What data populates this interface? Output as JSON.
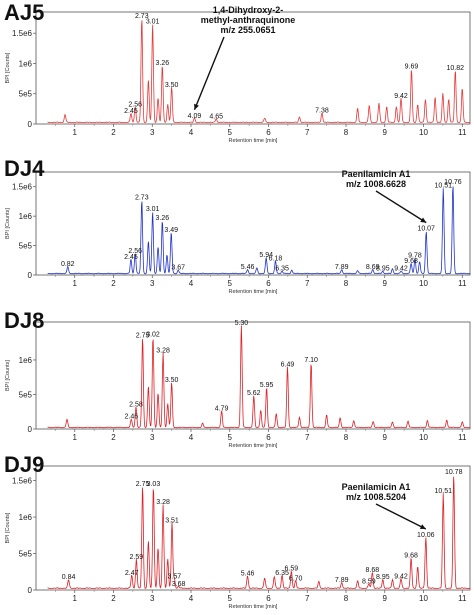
{
  "chart_data": [
    {
      "type": "line",
      "panel_label": "AJ5",
      "color": "#e8383a",
      "xlabel": "Retention time [min]",
      "ylabel": "BPI [Counts]",
      "xlim": [
        0,
        11.2
      ],
      "ylim": [
        0,
        1850000.0
      ],
      "x_ticks": [
        "1",
        "2",
        "3",
        "4",
        "5",
        "6",
        "7",
        "8",
        "9",
        "10",
        "11"
      ],
      "y_ticks": [
        {
          "label": "0",
          "value": 0
        },
        {
          "label": "5e5",
          "value": 500000
        },
        {
          "label": "1e6",
          "value": 1000000
        },
        {
          "label": "1.5e6",
          "value": 1500000
        }
      ],
      "peaks": [
        {
          "x": 2.45,
          "y": 150000,
          "label": "2.45"
        },
        {
          "x": 2.56,
          "y": 260000,
          "label": "2.56"
        },
        {
          "x": 2.73,
          "y": 1720000,
          "label": "2.73"
        },
        {
          "x": 3.01,
          "y": 1630000,
          "label": "3.01"
        },
        {
          "x": 3.26,
          "y": 940000,
          "label": "3.26"
        },
        {
          "x": 3.5,
          "y": 580000,
          "label": "3.50"
        },
        {
          "x": 4.09,
          "y": 70000,
          "label": "4.09"
        },
        {
          "x": 4.65,
          "y": 60000,
          "label": "4.65"
        },
        {
          "x": 7.38,
          "y": 160000,
          "label": "7.38"
        },
        {
          "x": 9.42,
          "y": 400000,
          "label": "9.42"
        },
        {
          "x": 9.69,
          "y": 880000,
          "label": "9.69"
        },
        {
          "x": 10.82,
          "y": 860000,
          "label": "10.82"
        },
        {
          "x": 0.75,
          "y": 130000,
          "label": ""
        },
        {
          "x": 2.9,
          "y": 700000,
          "label": ""
        },
        {
          "x": 3.15,
          "y": 400000,
          "label": ""
        },
        {
          "x": 3.4,
          "y": 300000,
          "label": ""
        },
        {
          "x": 5.9,
          "y": 70000,
          "label": ""
        },
        {
          "x": 6.8,
          "y": 90000,
          "label": ""
        },
        {
          "x": 8.3,
          "y": 230000,
          "label": ""
        },
        {
          "x": 8.6,
          "y": 280000,
          "label": ""
        },
        {
          "x": 8.85,
          "y": 320000,
          "label": ""
        },
        {
          "x": 9.05,
          "y": 260000,
          "label": ""
        },
        {
          "x": 9.3,
          "y": 260000,
          "label": ""
        },
        {
          "x": 9.85,
          "y": 300000,
          "label": ""
        },
        {
          "x": 10.05,
          "y": 380000,
          "label": ""
        },
        {
          "x": 10.3,
          "y": 420000,
          "label": ""
        },
        {
          "x": 10.5,
          "y": 480000,
          "label": ""
        },
        {
          "x": 10.65,
          "y": 380000,
          "label": ""
        },
        {
          "x": 11.0,
          "y": 560000,
          "label": ""
        }
      ],
      "annotation": {
        "lines": [
          "1,4-Dihydroxy-2-",
          "methyl-anthraquinone",
          "m/z 255.0651"
        ],
        "target_x": 4.09
      }
    },
    {
      "type": "line",
      "panel_label": "DJ4",
      "color": "#2233cc",
      "xlabel": "Retention time [min]",
      "ylabel": "BPI [Counts]",
      "xlim": [
        0,
        11.2
      ],
      "ylim": [
        0,
        1750000.0
      ],
      "x_ticks": [
        "1",
        "2",
        "3",
        "4",
        "5",
        "6",
        "7",
        "8",
        "9",
        "10",
        "11"
      ],
      "y_ticks": [
        {
          "label": "0",
          "value": 0
        },
        {
          "label": "5e5",
          "value": 500000
        },
        {
          "label": "1e6",
          "value": 1000000
        },
        {
          "label": "1.5e6",
          "value": 1500000
        }
      ],
      "peaks": [
        {
          "x": 0.82,
          "y": 120000,
          "label": "0.82"
        },
        {
          "x": 2.45,
          "y": 240000,
          "label": "2.45"
        },
        {
          "x": 2.56,
          "y": 340000,
          "label": "2.56"
        },
        {
          "x": 2.73,
          "y": 1250000,
          "label": "2.73"
        },
        {
          "x": 3.01,
          "y": 1050000,
          "label": "3.01"
        },
        {
          "x": 3.26,
          "y": 900000,
          "label": "3.26"
        },
        {
          "x": 3.49,
          "y": 700000,
          "label": "3.49"
        },
        {
          "x": 3.67,
          "y": 60000,
          "label": "3.67"
        },
        {
          "x": 5.46,
          "y": 70000,
          "label": "5.46"
        },
        {
          "x": 5.94,
          "y": 270000,
          "label": "5.94"
        },
        {
          "x": 6.18,
          "y": 210000,
          "label": "6.18"
        },
        {
          "x": 6.35,
          "y": 40000,
          "label": "6.35"
        },
        {
          "x": 7.89,
          "y": 70000,
          "label": "7.89"
        },
        {
          "x": 8.69,
          "y": 70000,
          "label": "8.69"
        },
        {
          "x": 8.95,
          "y": 40000,
          "label": "8.95"
        },
        {
          "x": 9.42,
          "y": 40000,
          "label": "9.42"
        },
        {
          "x": 9.68,
          "y": 170000,
          "label": "9.68"
        },
        {
          "x": 9.78,
          "y": 260000,
          "label": "9.78"
        },
        {
          "x": 10.07,
          "y": 720000,
          "label": "10.07"
        },
        {
          "x": 10.51,
          "y": 1450000,
          "label": "10.51"
        },
        {
          "x": 10.76,
          "y": 1510000,
          "label": "10.76"
        },
        {
          "x": 2.9,
          "y": 550000,
          "label": ""
        },
        {
          "x": 3.15,
          "y": 450000,
          "label": ""
        },
        {
          "x": 3.38,
          "y": 320000,
          "label": ""
        },
        {
          "x": 5.7,
          "y": 100000,
          "label": ""
        },
        {
          "x": 6.6,
          "y": 60000,
          "label": ""
        },
        {
          "x": 8.3,
          "y": 50000,
          "label": ""
        },
        {
          "x": 9.2,
          "y": 80000,
          "label": ""
        },
        {
          "x": 9.9,
          "y": 200000,
          "label": ""
        }
      ],
      "annotation": {
        "lines": [
          "Paenilamicin A1",
          "m/z 1008.6628"
        ],
        "target_x": 10.07
      }
    },
    {
      "type": "line",
      "panel_label": "DJ8",
      "color": "#e01f26",
      "xlabel": "Retention time [min]",
      "ylabel": "BPI [Counts]",
      "xlim": [
        0,
        11.2
      ],
      "ylim": [
        0,
        1550000.0
      ],
      "x_ticks": [
        "1",
        "2",
        "3",
        "4",
        "5",
        "6",
        "7",
        "8",
        "9",
        "10",
        "11"
      ],
      "y_ticks": [
        {
          "label": "0",
          "value": 0
        },
        {
          "label": "5e5",
          "value": 500000
        },
        {
          "label": "1e6",
          "value": 1000000
        }
      ],
      "peaks": [
        {
          "x": 2.46,
          "y": 120000,
          "label": "2.46"
        },
        {
          "x": 2.58,
          "y": 300000,
          "label": "2.58"
        },
        {
          "x": 2.75,
          "y": 1300000,
          "label": "2.75"
        },
        {
          "x": 3.02,
          "y": 1310000,
          "label": "3.02"
        },
        {
          "x": 3.28,
          "y": 1080000,
          "label": "3.28"
        },
        {
          "x": 3.5,
          "y": 650000,
          "label": "3.50"
        },
        {
          "x": 4.79,
          "y": 240000,
          "label": "4.79"
        },
        {
          "x": 5.3,
          "y": 1480000,
          "label": "5.30"
        },
        {
          "x": 5.62,
          "y": 460000,
          "label": "5.62"
        },
        {
          "x": 5.95,
          "y": 580000,
          "label": "5.95"
        },
        {
          "x": 6.49,
          "y": 880000,
          "label": "6.49"
        },
        {
          "x": 7.1,
          "y": 940000,
          "label": "7.10"
        },
        {
          "x": 0.8,
          "y": 120000,
          "label": ""
        },
        {
          "x": 2.9,
          "y": 600000,
          "label": ""
        },
        {
          "x": 3.15,
          "y": 500000,
          "label": ""
        },
        {
          "x": 3.4,
          "y": 350000,
          "label": ""
        },
        {
          "x": 4.3,
          "y": 60000,
          "label": ""
        },
        {
          "x": 5.8,
          "y": 250000,
          "label": ""
        },
        {
          "x": 6.2,
          "y": 200000,
          "label": ""
        },
        {
          "x": 6.8,
          "y": 150000,
          "label": ""
        },
        {
          "x": 7.5,
          "y": 180000,
          "label": ""
        },
        {
          "x": 7.85,
          "y": 140000,
          "label": ""
        },
        {
          "x": 8.2,
          "y": 100000,
          "label": ""
        },
        {
          "x": 8.7,
          "y": 90000,
          "label": ""
        },
        {
          "x": 9.2,
          "y": 80000,
          "label": ""
        },
        {
          "x": 9.6,
          "y": 90000,
          "label": ""
        },
        {
          "x": 10.1,
          "y": 100000,
          "label": ""
        },
        {
          "x": 10.6,
          "y": 110000,
          "label": ""
        },
        {
          "x": 11.0,
          "y": 80000,
          "label": ""
        }
      ]
    },
    {
      "type": "line",
      "panel_label": "DJ9",
      "color": "#e01f26",
      "xlabel": "Retention time [min]",
      "ylabel": "BPI [Counts]",
      "xlim": [
        0,
        11.2
      ],
      "ylim": [
        0,
        1700000.0
      ],
      "x_ticks": [
        "1",
        "2",
        "3",
        "4",
        "5",
        "6",
        "7",
        "8",
        "9",
        "10",
        "11"
      ],
      "y_ticks": [
        {
          "label": "0",
          "value": 0
        },
        {
          "label": "5e5",
          "value": 500000
        },
        {
          "label": "1e6",
          "value": 1000000
        },
        {
          "label": "1.5e6",
          "value": 1500000
        }
      ],
      "peaks": [
        {
          "x": 0.84,
          "y": 120000,
          "label": "0.84"
        },
        {
          "x": 2.47,
          "y": 180000,
          "label": "2.47"
        },
        {
          "x": 2.59,
          "y": 400000,
          "label": "2.59"
        },
        {
          "x": 2.75,
          "y": 1400000,
          "label": "2.75"
        },
        {
          "x": 3.03,
          "y": 1400000,
          "label": "3.03"
        },
        {
          "x": 3.28,
          "y": 1150000,
          "label": "3.28"
        },
        {
          "x": 3.51,
          "y": 900000,
          "label": "3.51"
        },
        {
          "x": 3.57,
          "y": 130000,
          "label": "3.57"
        },
        {
          "x": 3.68,
          "y": 30000,
          "label": "3.68"
        },
        {
          "x": 5.46,
          "y": 170000,
          "label": "5.46"
        },
        {
          "x": 6.35,
          "y": 180000,
          "label": "6.35"
        },
        {
          "x": 6.59,
          "y": 240000,
          "label": "6.59"
        },
        {
          "x": 6.7,
          "y": 100000,
          "label": "6.70"
        },
        {
          "x": 7.89,
          "y": 80000,
          "label": "7.89"
        },
        {
          "x": 8.59,
          "y": 60000,
          "label": "8.59"
        },
        {
          "x": 8.68,
          "y": 220000,
          "label": "8.68"
        },
        {
          "x": 8.95,
          "y": 120000,
          "label": "8.95"
        },
        {
          "x": 9.42,
          "y": 130000,
          "label": "9.42"
        },
        {
          "x": 9.68,
          "y": 420000,
          "label": "9.68"
        },
        {
          "x": 10.06,
          "y": 700000,
          "label": "10.06"
        },
        {
          "x": 10.51,
          "y": 1300000,
          "label": "10.51"
        },
        {
          "x": 10.78,
          "y": 1560000,
          "label": "10.78"
        },
        {
          "x": 2.9,
          "y": 650000,
          "label": ""
        },
        {
          "x": 3.15,
          "y": 550000,
          "label": ""
        },
        {
          "x": 3.4,
          "y": 400000,
          "label": ""
        },
        {
          "x": 5.9,
          "y": 140000,
          "label": ""
        },
        {
          "x": 6.15,
          "y": 160000,
          "label": ""
        },
        {
          "x": 7.3,
          "y": 90000,
          "label": ""
        },
        {
          "x": 8.3,
          "y": 100000,
          "label": ""
        },
        {
          "x": 9.2,
          "y": 120000,
          "label": ""
        },
        {
          "x": 9.85,
          "y": 300000,
          "label": ""
        }
      ],
      "annotation": {
        "lines": [
          "Paenilamicin A1",
          "m/z 1008.5204"
        ],
        "target_x": 10.06
      }
    }
  ]
}
